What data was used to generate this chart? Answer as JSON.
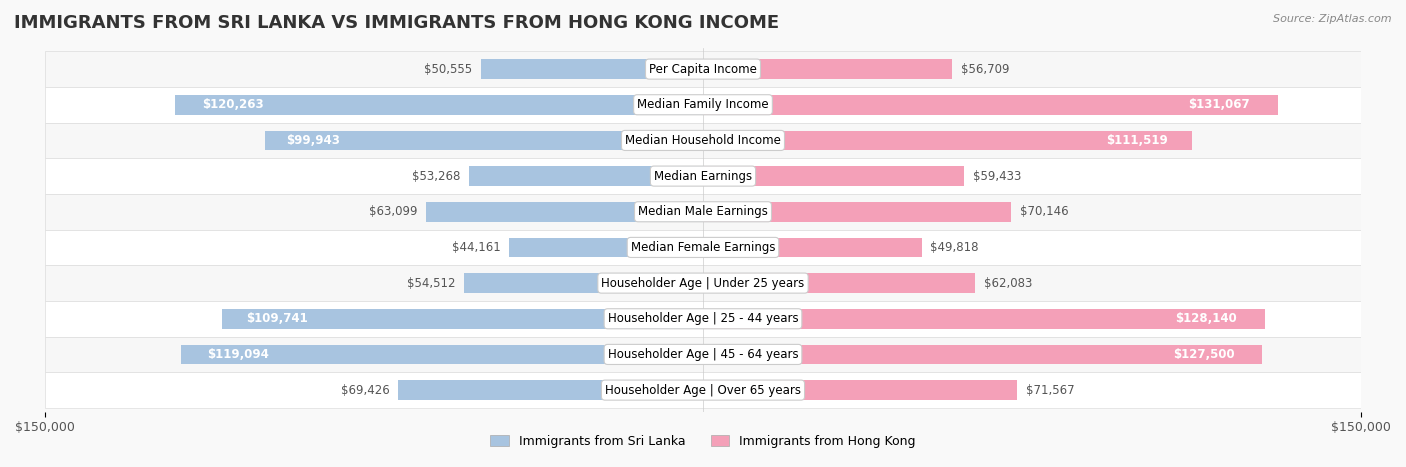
{
  "title": "IMMIGRANTS FROM SRI LANKA VS IMMIGRANTS FROM HONG KONG INCOME",
  "source": "Source: ZipAtlas.com",
  "categories": [
    "Per Capita Income",
    "Median Family Income",
    "Median Household Income",
    "Median Earnings",
    "Median Male Earnings",
    "Median Female Earnings",
    "Householder Age | Under 25 years",
    "Householder Age | 25 - 44 years",
    "Householder Age | 45 - 64 years",
    "Householder Age | Over 65 years"
  ],
  "sri_lanka_values": [
    50555,
    120263,
    99943,
    53268,
    63099,
    44161,
    54512,
    109741,
    119094,
    69426
  ],
  "hong_kong_values": [
    56709,
    131067,
    111519,
    59433,
    70146,
    49818,
    62083,
    128140,
    127500,
    71567
  ],
  "sri_lanka_labels": [
    "$50,555",
    "$120,263",
    "$99,943",
    "$53,268",
    "$63,099",
    "$44,161",
    "$54,512",
    "$109,741",
    "$119,094",
    "$69,426"
  ],
  "hong_kong_labels": [
    "$56,709",
    "$131,067",
    "$111,519",
    "$59,433",
    "$70,146",
    "$49,818",
    "$62,083",
    "$128,140",
    "$127,500",
    "$71,567"
  ],
  "sri_lanka_color": "#a8c4e0",
  "hong_kong_color": "#f4a0b8",
  "sri_lanka_color_solid": "#7bafd4",
  "hong_kong_color_solid": "#f07090",
  "sri_lanka_label_inside_color": "#ffffff",
  "hong_kong_label_inside_color": "#ffffff",
  "sri_lanka_label_outside_color": "#555555",
  "hong_kong_label_outside_color": "#555555",
  "max_value": 150000,
  "background_color": "#f9f9f9",
  "row_bg_color": "#f0f0f0",
  "row_alt_color": "#ffffff",
  "legend_sri_lanka": "Immigrants from Sri Lanka",
  "legend_hong_kong": "Immigrants from Hong Kong",
  "inside_threshold": 80000,
  "title_fontsize": 13,
  "label_fontsize": 8.5,
  "category_fontsize": 8.5,
  "axis_label_fontsize": 9
}
